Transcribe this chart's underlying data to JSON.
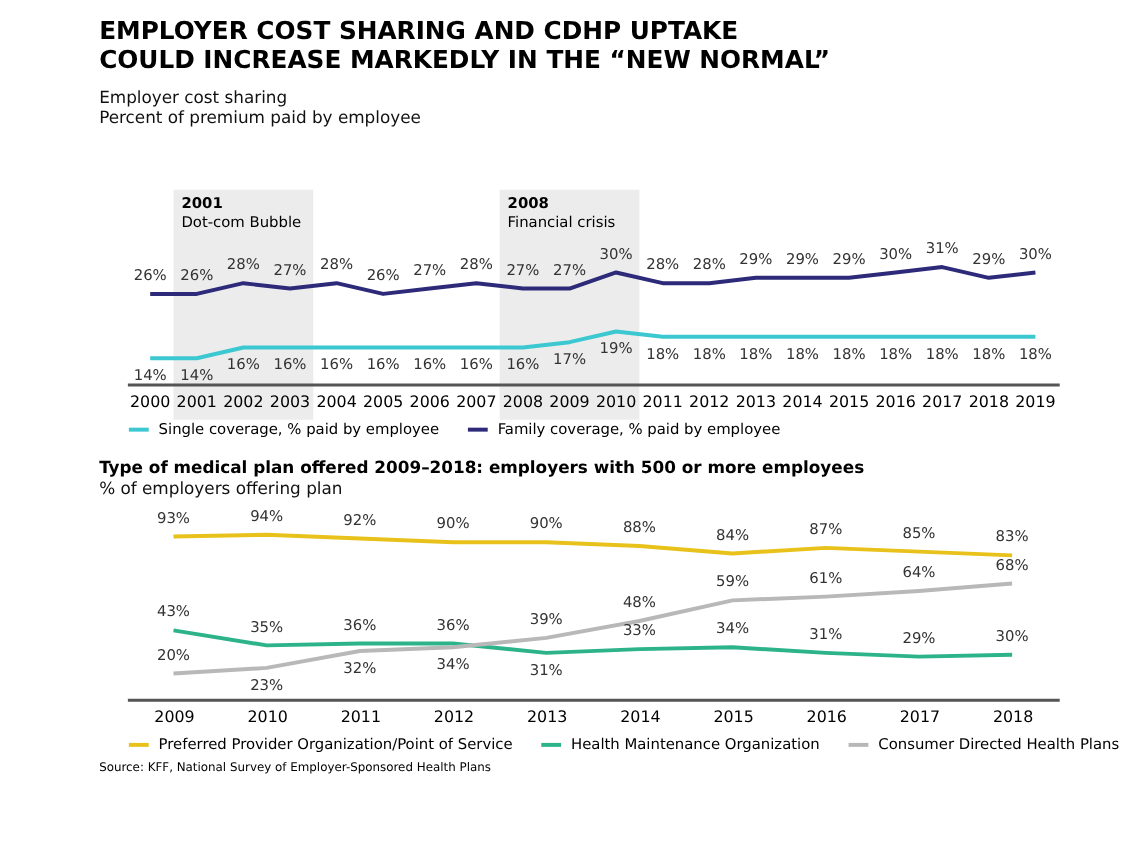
{
  "chart_data": [
    {
      "type": "line",
      "title": "EMPLOYER COST SHARING AND CDHP UPTAKE\nCOULD INCREASE MARKEDLY IN THE “NEW NORMAL”",
      "subtitle": "Employer cost sharing",
      "ylabel": "Percent of premium paid by employee",
      "categories": [
        "2000",
        "2001",
        "2002",
        "2003",
        "2004",
        "2005",
        "2006",
        "2007",
        "2008",
        "2009",
        "2010",
        "2011",
        "2012",
        "2013",
        "2014",
        "2015",
        "2016",
        "2017",
        "2018",
        "2019"
      ],
      "series": [
        {
          "name": "Single coverage, % paid by employee",
          "color": "#3cc8d0",
          "values": [
            14,
            14,
            16,
            16,
            16,
            16,
            16,
            16,
            16,
            17,
            19,
            18,
            18,
            18,
            18,
            18,
            18,
            18,
            18,
            18
          ],
          "value_labels": [
            "14%",
            "14%",
            "16%",
            "16%",
            "16%",
            "16%",
            "16%",
            "16%",
            "16%",
            "17%",
            "19%",
            "18%",
            "18%",
            "18%",
            "18%",
            "18%",
            "18%",
            "18%",
            "18%",
            "18%"
          ]
        },
        {
          "name": "Family coverage, % paid by employee",
          "color": "#2e2a7a",
          "values": [
            26,
            26,
            28,
            27,
            28,
            26,
            27,
            28,
            27,
            27,
            30,
            28,
            28,
            29,
            29,
            29,
            30,
            31,
            29,
            30
          ],
          "value_labels": [
            "26%",
            "26%",
            "28%",
            "27%",
            "28%",
            "26%",
            "27%",
            "28%",
            "27%",
            "27%",
            "30%",
            "28%",
            "28%",
            "29%",
            "29%",
            "29%",
            "30%",
            "31%",
            "29%",
            "30%"
          ]
        }
      ],
      "bands": [
        {
          "axis": "x",
          "from": "2001",
          "to": "2003",
          "label": "2001\nDot-com Bubble",
          "color": "#ececec"
        },
        {
          "axis": "x",
          "from": "2008",
          "to": "2010",
          "label": "2008\nFinancial crisis",
          "color": "#ececec"
        }
      ],
      "data_labels": true,
      "grid": false,
      "legend": "bottom",
      "marker": "none",
      "line_style": "solid"
    },
    {
      "type": "line",
      "title": "Type of medical plan offered 2009–2018: employers with 500 or more employees",
      "ylabel": "% of employers offering plan",
      "categories": [
        "2009",
        "2010",
        "2011",
        "2012",
        "2013",
        "2014",
        "2015",
        "2016",
        "2017",
        "2018"
      ],
      "series": [
        {
          "name": "Preferred Provider Organization/Point of Service",
          "color": "#e8c21a",
          "values": [
            93,
            94,
            92,
            90,
            90,
            88,
            84,
            87,
            85,
            83
          ],
          "value_labels": [
            "93%",
            "94%",
            "92%",
            "90%",
            "90%",
            "88%",
            "84%",
            "87%",
            "85%",
            "83%"
          ]
        },
        {
          "name": "Health Maintenance Organization",
          "color": "#2db38a",
          "values": [
            43,
            35,
            36,
            36,
            31,
            33,
            34,
            31,
            29,
            30
          ],
          "value_labels": [
            "43%",
            "35%",
            "36%",
            "36%",
            "31%",
            "33%",
            "34%",
            "31%",
            "29%",
            "30%"
          ]
        },
        {
          "name": "Consumer Directed Health Plans",
          "color": "#b8b8b8",
          "values": [
            20,
            23,
            32,
            34,
            39,
            48,
            59,
            61,
            64,
            68
          ],
          "value_labels": [
            "20%",
            "23%",
            "32%",
            "34%",
            "39%",
            "48%",
            "59%",
            "61%",
            "64%",
            "68%"
          ]
        }
      ],
      "annotations": [
        "Source: KFF, National Survey of Employer-Sponsored Health Plans"
      ],
      "data_labels": true,
      "grid": false,
      "legend": "bottom",
      "marker": "none",
      "line_style": "solid"
    }
  ]
}
